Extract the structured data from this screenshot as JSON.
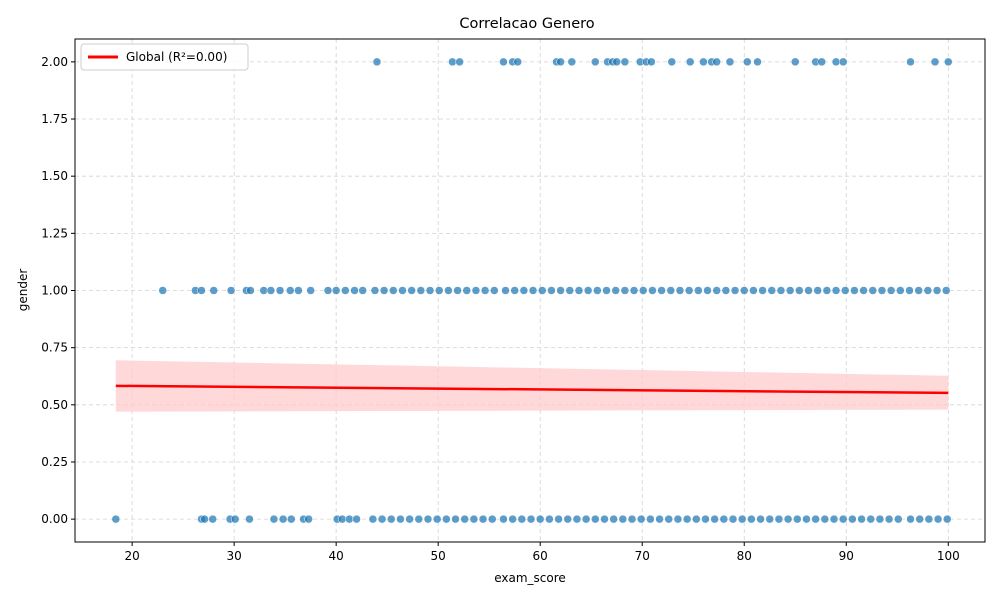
{
  "chart_data": {
    "type": "scatter",
    "title": "Correlacao Genero",
    "xlabel": "exam_score",
    "ylabel": "gender",
    "xlim": [
      14.4,
      103.6
    ],
    "ylim": [
      -0.1,
      2.1
    ],
    "xticks": [
      20,
      30,
      40,
      50,
      60,
      70,
      80,
      90,
      100
    ],
    "yticks": [
      0.0,
      0.25,
      0.5,
      0.75,
      1.0,
      1.25,
      1.5,
      1.75,
      2.0
    ],
    "xtick_labels": [
      "20",
      "30",
      "40",
      "50",
      "60",
      "70",
      "80",
      "90",
      "100"
    ],
    "ytick_labels": [
      "0.00",
      "0.25",
      "0.50",
      "0.75",
      "1.00",
      "1.25",
      "1.50",
      "1.75",
      "2.00"
    ],
    "grid": true,
    "legend_position": "top-left",
    "colors": {
      "points": "#1f77b4",
      "regression": "#ff0000",
      "band": "#ffcccc",
      "grid": "#d3d3d3"
    },
    "series": [
      {
        "kind": "points",
        "group": 0,
        "x": [
          18.4,
          26.8,
          27.1,
          27.9,
          29.6,
          30.1,
          31.5,
          33.9,
          34.8,
          35.6,
          36.8,
          37.3,
          40.1,
          40.6,
          41.3,
          42.0,
          43.6,
          44.5,
          45.4,
          46.3,
          47.2,
          48.1,
          49.0,
          49.9,
          50.8,
          51.7,
          52.6,
          53.5,
          54.4,
          55.3,
          56.4,
          57.3,
          58.2,
          59.1,
          60.0,
          60.9,
          61.8,
          62.7,
          63.6,
          64.5,
          65.4,
          66.3,
          67.2,
          68.1,
          69.0,
          69.9,
          70.8,
          71.7,
          72.6,
          73.5,
          74.4,
          75.3,
          76.2,
          77.1,
          78.0,
          78.9,
          79.8,
          80.7,
          81.6,
          82.5,
          83.4,
          84.3,
          85.2,
          86.1,
          87.0,
          87.9,
          88.8,
          89.7,
          90.6,
          91.5,
          92.4,
          93.3,
          94.2,
          95.1,
          96.3,
          97.2,
          98.1,
          99.0,
          99.9
        ],
        "y": [
          0,
          0,
          0,
          0,
          0,
          0,
          0,
          0,
          0,
          0,
          0,
          0,
          0,
          0,
          0,
          0,
          0,
          0,
          0,
          0,
          0,
          0,
          0,
          0,
          0,
          0,
          0,
          0,
          0,
          0,
          0,
          0,
          0,
          0,
          0,
          0,
          0,
          0,
          0,
          0,
          0,
          0,
          0,
          0,
          0,
          0,
          0,
          0,
          0,
          0,
          0,
          0,
          0,
          0,
          0,
          0,
          0,
          0,
          0,
          0,
          0,
          0,
          0,
          0,
          0,
          0,
          0,
          0,
          0,
          0,
          0,
          0,
          0,
          0,
          0,
          0,
          0,
          0,
          0
        ]
      },
      {
        "kind": "points",
        "group": 1,
        "x": [
          23.0,
          26.2,
          26.8,
          28.0,
          29.7,
          31.2,
          31.6,
          32.9,
          33.6,
          34.5,
          35.5,
          36.3,
          37.5,
          39.2,
          40.0,
          40.9,
          41.8,
          42.6,
          43.8,
          44.7,
          45.6,
          46.5,
          47.4,
          48.3,
          49.2,
          50.1,
          51.0,
          51.9,
          52.8,
          53.7,
          54.6,
          55.5,
          56.6,
          57.5,
          58.4,
          59.3,
          60.2,
          61.1,
          62.0,
          62.9,
          63.8,
          64.7,
          65.6,
          66.5,
          67.4,
          68.3,
          69.2,
          70.1,
          71.0,
          71.9,
          72.8,
          73.7,
          74.6,
          75.5,
          76.4,
          77.3,
          78.2,
          79.1,
          80.0,
          80.9,
          81.8,
          82.7,
          83.6,
          84.5,
          85.4,
          86.3,
          87.2,
          88.1,
          89.0,
          89.9,
          90.8,
          91.7,
          92.6,
          93.5,
          94.4,
          95.3,
          96.2,
          97.1,
          98.0,
          98.9,
          99.8
        ],
        "y": [
          1,
          1,
          1,
          1,
          1,
          1,
          1,
          1,
          1,
          1,
          1,
          1,
          1,
          1,
          1,
          1,
          1,
          1,
          1,
          1,
          1,
          1,
          1,
          1,
          1,
          1,
          1,
          1,
          1,
          1,
          1,
          1,
          1,
          1,
          1,
          1,
          1,
          1,
          1,
          1,
          1,
          1,
          1,
          1,
          1,
          1,
          1,
          1,
          1,
          1,
          1,
          1,
          1,
          1,
          1,
          1,
          1,
          1,
          1,
          1,
          1,
          1,
          1,
          1,
          1,
          1,
          1,
          1,
          1,
          1,
          1,
          1,
          1,
          1,
          1,
          1,
          1,
          1,
          1,
          1,
          1
        ]
      },
      {
        "kind": "points",
        "group": 2,
        "x": [
          44.0,
          51.4,
          52.1,
          56.4,
          57.3,
          57.8,
          61.6,
          62.0,
          63.1,
          65.4,
          66.6,
          67.1,
          67.5,
          68.3,
          69.8,
          70.4,
          70.9,
          72.9,
          74.7,
          76.0,
          76.8,
          77.3,
          78.6,
          80.3,
          81.3,
          85.0,
          87.0,
          87.6,
          89.0,
          89.7,
          96.3,
          98.7,
          100.0
        ],
        "y": [
          2,
          2,
          2,
          2,
          2,
          2,
          2,
          2,
          2,
          2,
          2,
          2,
          2,
          2,
          2,
          2,
          2,
          2,
          2,
          2,
          2,
          2,
          2,
          2,
          2,
          2,
          2,
          2,
          2,
          2,
          2,
          2,
          2
        ]
      },
      {
        "kind": "regression",
        "name": "Global (R²=0.00)",
        "x": [
          18.4,
          100.0
        ],
        "y": [
          0.583,
          0.552
        ],
        "band_upper": [
          0.695,
          0.627
        ],
        "band_lower": [
          0.47,
          0.479
        ]
      }
    ]
  }
}
